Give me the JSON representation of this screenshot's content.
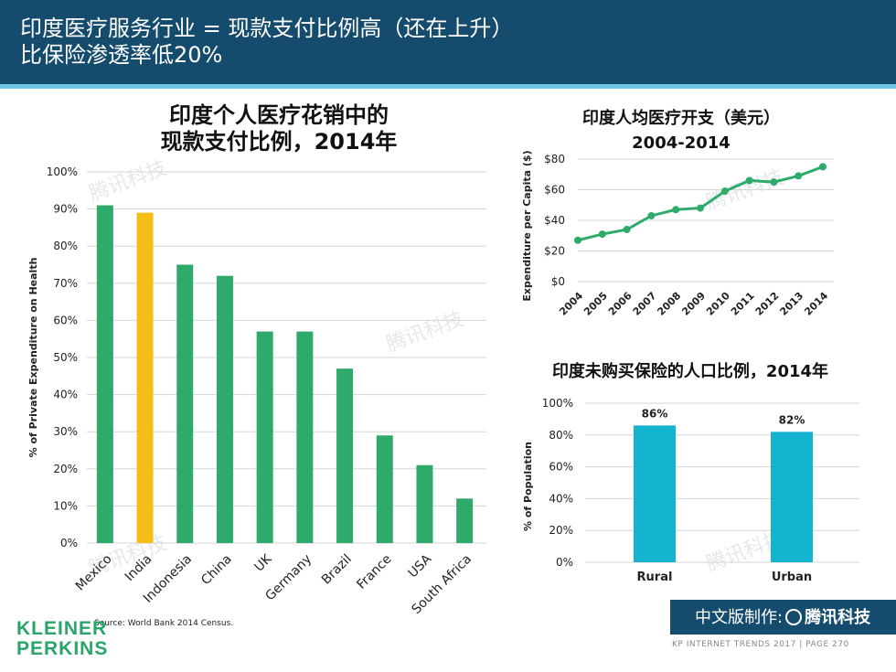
{
  "header": {
    "line1": "印度医疗服务行业 = 现款支付比例高（还在上升）",
    "line2": "比保险渗透率低20%"
  },
  "chart_data": [
    {
      "type": "bar",
      "title_line1": "印度个人医疗花销中的",
      "title_line2": "现款支付比例，2014年",
      "ylabel": "% of Private Expenditure on Health",
      "categories": [
        "Mexico",
        "India",
        "Indonesia",
        "China",
        "UK",
        "Germany",
        "Brazil",
        "France",
        "USA",
        "South Africa"
      ],
      "values": [
        91,
        89,
        75,
        72,
        57,
        57,
        47,
        29,
        21,
        12
      ],
      "highlight": "India",
      "y_ticks": [
        "0%",
        "10%",
        "20%",
        "30%",
        "40%",
        "50%",
        "60%",
        "70%",
        "80%",
        "90%",
        "100%"
      ],
      "ylim": [
        0,
        100
      ],
      "colors": {
        "default": "#2eaa6b",
        "highlight": "#f5be16"
      }
    },
    {
      "type": "line",
      "title_line1": "印度人均医疗开支（美元）",
      "title_line2": "2004-2014",
      "ylabel": "Expenditure per Capita ($)",
      "x": [
        "2004",
        "2005",
        "2006",
        "2007",
        "2008",
        "2009",
        "2010",
        "2011",
        "2012",
        "2013",
        "2014"
      ],
      "values": [
        27,
        31,
        34,
        43,
        47,
        48,
        59,
        66,
        65,
        69,
        75
      ],
      "y_ticks": [
        "$0",
        "$20",
        "$40",
        "$60",
        "$80"
      ],
      "ylim": [
        0,
        80
      ],
      "color": "#2eaa6b"
    },
    {
      "type": "bar",
      "title": "印度未购买保险的人口比例，2014年",
      "ylabel": "% of Population",
      "categories": [
        "Rural",
        "Urban"
      ],
      "values": [
        86,
        82
      ],
      "data_labels": [
        "86%",
        "82%"
      ],
      "y_ticks": [
        "0%",
        "20%",
        "40%",
        "60%",
        "80%",
        "100%"
      ],
      "ylim": [
        0,
        100
      ],
      "color": "#14b3cf"
    }
  ],
  "source": "Source: World Bank 2014 Census.",
  "logo": {
    "line1": "KLEINER",
    "line2": "PERKINS"
  },
  "badge": {
    "prefix": "中文版制作:",
    "brand": "腾讯科技"
  },
  "footer": "KP INTERNET TRENDS 2017  |  PAGE 270",
  "watermark": "腾讯科技"
}
